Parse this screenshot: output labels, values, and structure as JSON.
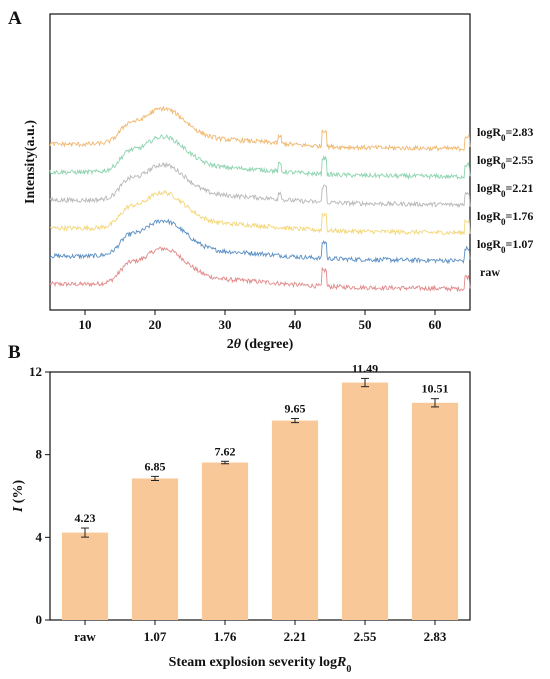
{
  "chart_data": [
    {
      "panel": "A",
      "type": "line",
      "xlabel_parts": [
        "2",
        "θ",
        " (degree)"
      ],
      "ylabel": "Intensity(a.u.)",
      "xlim": [
        5,
        65
      ],
      "x_ticks": [
        10,
        20,
        30,
        40,
        50,
        60
      ],
      "grid": false,
      "series": [
        {
          "name": "raw",
          "label_parts": [
            "raw",
            "",
            ""
          ],
          "color": "#e08a8a",
          "offset": 0
        },
        {
          "name": "logR0=1.07",
          "label_parts": [
            "logR",
            "0",
            "=1.07"
          ],
          "color": "#5b8fc4",
          "offset": 1
        },
        {
          "name": "logR0=1.76",
          "label_parts": [
            "logR",
            "0",
            "=1.76"
          ],
          "color": "#f3d77a",
          "offset": 2
        },
        {
          "name": "logR0=2.21",
          "label_parts": [
            "logR",
            "0",
            "=2.21"
          ],
          "color": "#b8b8b8",
          "offset": 3
        },
        {
          "name": "logR0=2.55",
          "label_parts": [
            "logR",
            "0",
            "=2.55"
          ],
          "color": "#8fd4b0",
          "offset": 4
        },
        {
          "name": "logR0=2.83",
          "label_parts": [
            "logR",
            "0",
            "=2.83"
          ],
          "color": "#f0b870",
          "offset": 5
        }
      ]
    },
    {
      "panel": "B",
      "type": "bar",
      "categories": [
        "raw",
        "1.07",
        "1.76",
        "2.21",
        "2.55",
        "2.83"
      ],
      "values": [
        4.23,
        6.85,
        7.62,
        9.65,
        11.49,
        10.51
      ],
      "errors": [
        0.22,
        0.1,
        0.06,
        0.1,
        0.2,
        0.2
      ],
      "value_labels": [
        "4.23",
        "6.85",
        "7.62",
        "9.65",
        "11.49",
        "10.51"
      ],
      "ylabel_parts": [
        "I",
        " (%)"
      ],
      "xlabel_parts": [
        "Steam explosion severity log",
        "R",
        "0"
      ],
      "ylim": [
        0,
        12
      ],
      "y_ticks": [
        0,
        4,
        8,
        12
      ],
      "bar_color": "#f8c898",
      "grid": false
    }
  ],
  "panels": {
    "a_letter": "A",
    "b_letter": "B"
  },
  "colors": {
    "axis": "#111111",
    "bar_fill": "#f8c898"
  }
}
